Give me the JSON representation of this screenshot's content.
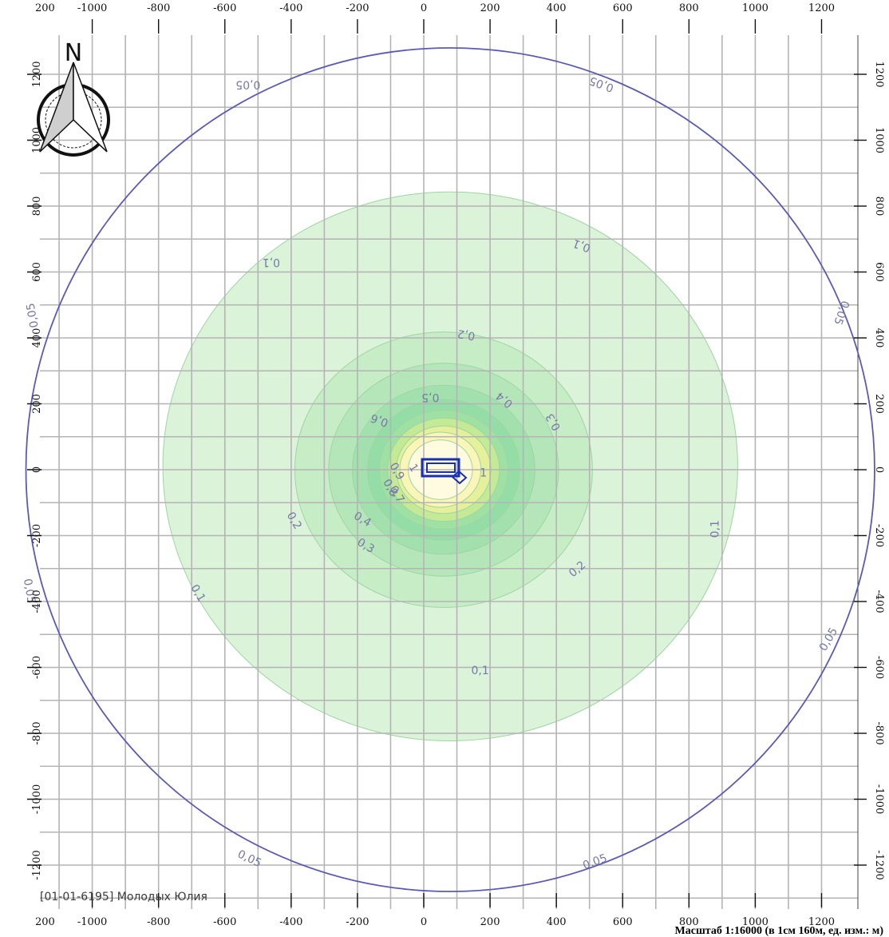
{
  "map": {
    "units": "м",
    "x_range": [
      -1250,
      1290
    ],
    "y_range": [
      -1320,
      1280
    ],
    "x_ticks": [
      -1000,
      -800,
      -600,
      -400,
      -200,
      0,
      200,
      400,
      600,
      800,
      1000,
      1200
    ],
    "y_ticks": [
      -1200,
      -1000,
      -800,
      -600,
      -400,
      -200,
      0,
      200,
      400,
      600,
      800,
      1000,
      1200
    ],
    "edge_tick_label_top": "200",
    "edge_tick_label_bottom": "200",
    "grid": true,
    "grid_step": 100,
    "north_label": "N",
    "caption": "[01-01-6195] Молодых Юлия",
    "scale_note": "Масштаб 1:16000 (в 1см 160м, ед. изм.: м)"
  },
  "chart_data": {
    "type": "contour",
    "source_center": [
      80,
      0
    ],
    "isolines": [
      {
        "level": "0,05",
        "center": [
          80,
          0
        ],
        "radius": 1280
      },
      {
        "level": "0,1",
        "center": [
          80,
          10
        ],
        "radius": 850
      },
      {
        "level": "0,2",
        "center": [
          60,
          0
        ],
        "radius": 440
      },
      {
        "level": "0,3",
        "center": [
          60,
          0
        ],
        "radius": 340
      },
      {
        "level": "0,4",
        "center": [
          60,
          0
        ],
        "radius": 270
      },
      {
        "level": "0,5",
        "center": [
          60,
          0
        ],
        "radius": 225
      },
      {
        "level": "0,6",
        "center": [
          60,
          0
        ],
        "radius": 190
      },
      {
        "level": "0,7",
        "center": [
          60,
          0
        ],
        "radius": 165
      },
      {
        "level": "0,8",
        "center": [
          60,
          0
        ],
        "radius": 140
      },
      {
        "level": "0,9",
        "center": [
          50,
          0
        ],
        "radius": 120
      },
      {
        "level": "1",
        "center": [
          50,
          0
        ],
        "radius": 95
      }
    ],
    "labels": [
      {
        "text": "0,05",
        "at": [
          -530,
          1180
        ],
        "rotate": 180
      },
      {
        "text": "0,05",
        "at": [
          540,
          1180
        ],
        "rotate": 200
      },
      {
        "text": "0,05",
        "at": [
          -1170,
          470
        ],
        "rotate": 260
      },
      {
        "text": "0,05",
        "at": [
          1250,
          480
        ],
        "rotate": 110
      },
      {
        "text": "0,05",
        "at": [
          -1200,
          -370
        ],
        "rotate": 80
      },
      {
        "text": "0,05",
        "at": [
          1230,
          -520
        ],
        "rotate": 300
      },
      {
        "text": "0,05",
        "at": [
          -530,
          -1190
        ],
        "rotate": 25
      },
      {
        "text": "0,05",
        "at": [
          520,
          -1200
        ],
        "rotate": 340
      },
      {
        "text": "0,1",
        "at": [
          -460,
          640
        ],
        "rotate": 180
      },
      {
        "text": "0,1",
        "at": [
          480,
          690
        ],
        "rotate": 200
      },
      {
        "text": "0,1",
        "at": [
          890,
          -180
        ],
        "rotate": 270
      },
      {
        "text": "0,1",
        "at": [
          -690,
          -380
        ],
        "rotate": 60
      },
      {
        "text": "0,1",
        "at": [
          170,
          -620
        ],
        "rotate": 0
      },
      {
        "text": "0,2",
        "at": [
          130,
          420
        ],
        "rotate": 190
      },
      {
        "text": "0,2",
        "at": [
          -400,
          -160
        ],
        "rotate": 60
      },
      {
        "text": "0,2",
        "at": [
          470,
          -310
        ],
        "rotate": 320
      },
      {
        "text": "0,3",
        "at": [
          -180,
          -240
        ],
        "rotate": 30
      },
      {
        "text": "0,3",
        "at": [
          400,
          150
        ],
        "rotate": 240
      },
      {
        "text": "0,4",
        "at": [
          -190,
          -160
        ],
        "rotate": 30
      },
      {
        "text": "0,4",
        "at": [
          250,
          220
        ],
        "rotate": 220
      },
      {
        "text": "0,5",
        "at": [
          20,
          230
        ],
        "rotate": 180
      },
      {
        "text": "0,6",
        "at": [
          -130,
          160
        ],
        "rotate": 200
      },
      {
        "text": "0,7",
        "at": [
          -90,
          -80
        ],
        "rotate": 60
      },
      {
        "text": "0,8",
        "at": [
          -110,
          -60
        ],
        "rotate": 60
      },
      {
        "text": "0,9",
        "at": [
          -90,
          -10
        ],
        "rotate": 60
      },
      {
        "text": "1",
        "at": [
          -40,
          0
        ],
        "rotate": 60
      },
      {
        "text": "1",
        "at": [
          180,
          -20
        ],
        "rotate": 0
      }
    ]
  }
}
